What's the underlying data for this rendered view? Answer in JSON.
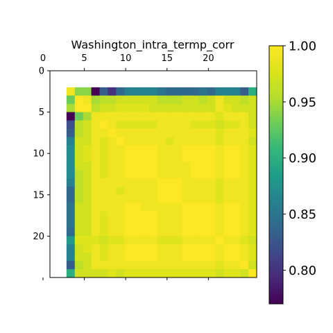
{
  "chart_data": {
    "type": "heatmap",
    "title": "Washington_intra_termp_corr",
    "colormap": "viridis",
    "nrows": 25,
    "ncols": 25,
    "x_ticks": [
      0,
      5,
      10,
      15,
      20
    ],
    "y_ticks": [
      0,
      5,
      10,
      15,
      20
    ],
    "x_tick_position": "top",
    "colorbar": {
      "vmin": 0.77,
      "vmax": 1.0,
      "ticks": [
        "0.80",
        "0.85",
        "0.90",
        "0.95",
        "1.00"
      ],
      "tick_values": [
        0.8,
        0.85,
        0.9,
        0.95,
        1.0
      ]
    },
    "rows": [
      [
        null,
        null,
        null,
        null,
        null,
        null,
        null,
        null,
        null,
        null,
        null,
        null,
        null,
        null,
        null,
        null,
        null,
        null,
        null,
        null,
        null,
        null,
        null,
        null,
        null
      ],
      [
        null,
        null,
        null,
        null,
        null,
        null,
        null,
        null,
        null,
        null,
        null,
        null,
        null,
        null,
        null,
        null,
        null,
        null,
        null,
        null,
        null,
        null,
        null,
        null,
        null
      ],
      [
        null,
        null,
        0.99,
        0.94,
        0.94,
        0.77,
        0.83,
        0.8,
        0.84,
        0.86,
        0.86,
        0.86,
        0.86,
        0.85,
        0.84,
        0.84,
        0.84,
        0.84,
        0.85,
        0.84,
        0.86,
        0.86,
        0.86,
        0.83,
        0.9
      ],
      [
        null,
        null,
        0.93,
        1.0,
        0.99,
        0.95,
        0.96,
        0.96,
        0.97,
        0.97,
        0.97,
        0.97,
        0.97,
        0.96,
        0.96,
        0.96,
        0.97,
        0.97,
        0.96,
        0.97,
        0.99,
        0.97,
        0.97,
        0.96,
        0.97
      ],
      [
        null,
        null,
        0.95,
        1.0,
        1.0,
        0.96,
        0.97,
        0.97,
        0.98,
        0.98,
        0.98,
        0.98,
        0.97,
        0.97,
        0.97,
        0.97,
        0.97,
        0.97,
        0.97,
        0.97,
        0.99,
        0.98,
        0.97,
        0.97,
        0.97
      ],
      [
        null,
        null,
        0.77,
        0.93,
        0.95,
        0.99,
        0.99,
        0.99,
        0.99,
        0.99,
        0.99,
        0.99,
        0.99,
        0.99,
        0.99,
        0.99,
        0.99,
        0.99,
        0.99,
        0.99,
        0.98,
        0.99,
        0.99,
        0.99,
        0.97
      ],
      [
        null,
        null,
        0.82,
        0.96,
        0.97,
        0.99,
        1.0,
        0.99,
        0.98,
        0.98,
        0.98,
        0.98,
        0.98,
        0.99,
        0.99,
        0.99,
        0.99,
        0.98,
        0.98,
        0.98,
        0.97,
        0.98,
        0.98,
        0.99,
        0.97
      ],
      [
        null,
        null,
        0.83,
        0.96,
        0.97,
        0.99,
        0.99,
        1.0,
        0.99,
        0.99,
        0.99,
        0.99,
        0.99,
        0.99,
        0.99,
        0.99,
        0.99,
        0.99,
        0.99,
        0.99,
        0.98,
        0.99,
        0.99,
        0.99,
        0.98
      ],
      [
        null,
        null,
        0.86,
        0.97,
        0.97,
        0.99,
        0.98,
        0.99,
        1.0,
        0.99,
        0.99,
        0.99,
        0.99,
        0.99,
        0.98,
        0.99,
        0.99,
        0.99,
        0.99,
        0.99,
        0.98,
        0.99,
        0.99,
        0.99,
        0.97
      ],
      [
        null,
        null,
        0.87,
        0.97,
        0.98,
        0.99,
        0.98,
        0.99,
        0.99,
        1.0,
        1.0,
        1.0,
        1.0,
        0.99,
        0.99,
        0.99,
        1.0,
        1.0,
        1.0,
        1.0,
        0.99,
        1.0,
        1.0,
        0.99,
        0.98
      ],
      [
        null,
        null,
        0.87,
        0.97,
        0.98,
        0.99,
        0.98,
        0.99,
        0.99,
        1.0,
        1.0,
        1.0,
        1.0,
        0.99,
        0.99,
        0.99,
        1.0,
        1.0,
        1.0,
        1.0,
        0.99,
        1.0,
        1.0,
        0.99,
        0.98
      ],
      [
        null,
        null,
        0.87,
        0.97,
        0.97,
        0.99,
        0.98,
        0.99,
        0.99,
        1.0,
        1.0,
        1.0,
        1.0,
        0.99,
        0.99,
        0.99,
        0.99,
        1.0,
        1.0,
        1.0,
        0.99,
        1.0,
        1.0,
        0.99,
        0.98
      ],
      [
        null,
        null,
        0.87,
        0.96,
        0.97,
        0.99,
        0.98,
        0.99,
        0.99,
        1.0,
        1.0,
        1.0,
        1.0,
        0.99,
        0.99,
        0.99,
        0.99,
        1.0,
        1.0,
        1.0,
        0.99,
        1.0,
        1.0,
        0.99,
        0.98
      ],
      [
        null,
        null,
        0.86,
        0.96,
        0.97,
        0.99,
        0.99,
        0.99,
        0.99,
        0.99,
        0.99,
        0.99,
        0.99,
        1.0,
        1.0,
        1.0,
        0.99,
        0.99,
        0.99,
        0.99,
        0.98,
        0.99,
        0.99,
        0.99,
        0.98
      ],
      [
        null,
        null,
        0.84,
        0.96,
        0.97,
        0.99,
        0.99,
        0.99,
        0.98,
        0.99,
        0.99,
        0.99,
        0.99,
        1.0,
        1.0,
        1.0,
        0.99,
        0.99,
        0.99,
        0.99,
        0.98,
        0.99,
        0.99,
        0.99,
        0.98
      ],
      [
        null,
        null,
        0.84,
        0.96,
        0.97,
        0.99,
        0.99,
        0.99,
        0.99,
        0.99,
        0.99,
        0.99,
        0.99,
        1.0,
        1.0,
        1.0,
        0.99,
        0.99,
        0.99,
        0.99,
        0.98,
        0.99,
        0.99,
        0.99,
        0.98
      ],
      [
        null,
        null,
        0.85,
        0.97,
        0.97,
        0.99,
        0.99,
        0.99,
        0.99,
        1.0,
        1.0,
        0.99,
        0.99,
        0.99,
        0.99,
        0.99,
        1.0,
        1.0,
        1.0,
        1.0,
        0.99,
        1.0,
        1.0,
        0.99,
        0.98
      ],
      [
        null,
        null,
        0.85,
        0.97,
        0.97,
        0.99,
        0.98,
        0.99,
        0.99,
        1.0,
        1.0,
        1.0,
        1.0,
        0.99,
        0.99,
        0.99,
        1.0,
        1.0,
        1.0,
        1.0,
        0.99,
        1.0,
        1.0,
        0.99,
        0.98
      ],
      [
        null,
        null,
        0.85,
        0.97,
        0.97,
        0.99,
        0.98,
        0.99,
        0.99,
        1.0,
        1.0,
        1.0,
        1.0,
        0.99,
        0.99,
        0.99,
        1.0,
        1.0,
        1.0,
        1.0,
        0.99,
        1.0,
        1.0,
        0.99,
        0.98
      ],
      [
        null,
        null,
        0.84,
        0.97,
        0.97,
        0.99,
        0.98,
        0.99,
        0.99,
        1.0,
        1.0,
        1.0,
        1.0,
        0.99,
        0.99,
        0.99,
        1.0,
        1.0,
        1.0,
        1.0,
        0.99,
        1.0,
        1.0,
        0.99,
        0.98
      ],
      [
        null,
        null,
        0.88,
        0.98,
        0.98,
        0.98,
        0.97,
        0.98,
        0.98,
        0.99,
        0.99,
        0.99,
        0.99,
        0.98,
        0.98,
        0.98,
        0.99,
        0.99,
        0.99,
        0.99,
        1.0,
        0.99,
        0.99,
        0.98,
        0.97
      ],
      [
        null,
        null,
        0.86,
        0.97,
        0.98,
        0.99,
        0.98,
        0.99,
        0.99,
        1.0,
        1.0,
        1.0,
        1.0,
        0.99,
        0.99,
        0.99,
        1.0,
        1.0,
        1.0,
        1.0,
        0.99,
        1.0,
        1.0,
        0.99,
        0.98
      ],
      [
        null,
        null,
        0.86,
        0.97,
        0.97,
        0.99,
        0.98,
        0.99,
        0.99,
        1.0,
        1.0,
        1.0,
        1.0,
        0.99,
        0.99,
        0.99,
        1.0,
        1.0,
        1.0,
        1.0,
        0.99,
        1.0,
        1.0,
        0.99,
        0.98
      ],
      [
        null,
        null,
        0.83,
        0.96,
        0.97,
        0.99,
        0.99,
        0.99,
        0.99,
        0.99,
        0.99,
        0.99,
        0.99,
        0.99,
        0.99,
        0.99,
        0.99,
        0.99,
        0.99,
        0.99,
        0.98,
        0.99,
        0.99,
        1.0,
        0.97
      ],
      [
        null,
        null,
        0.9,
        0.97,
        0.97,
        0.97,
        0.97,
        0.98,
        0.97,
        0.98,
        0.98,
        0.98,
        0.98,
        0.98,
        0.98,
        0.98,
        0.98,
        0.98,
        0.98,
        0.98,
        0.97,
        0.98,
        0.98,
        0.97,
        1.0
      ]
    ]
  }
}
